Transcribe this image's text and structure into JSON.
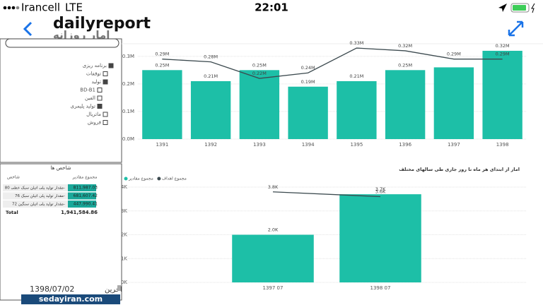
{
  "status_bar": {
    "carrier": "Irancell",
    "network": "LTE",
    "time": "22:01"
  },
  "header": {
    "title": "dailyreport",
    "subtitle": "امار روزانه"
  },
  "sidebar": {
    "tree": [
      "برنامه ریزی",
      "توقفات",
      "تولید",
      "BD-B1",
      "الفین",
      "تولید پلیمری",
      "ماتریال",
      "فروش"
    ]
  },
  "table": {
    "title": "شاخص ها",
    "columns": [
      "شاخص",
      "مجموع مقادیر"
    ],
    "rows": [
      [
        "مقدار تولید پلی اتیلن سبک خطی 80-",
        "811,987.03"
      ],
      [
        "مقدار تولید پلی اتیلن سبک 76-",
        "681,607.42"
      ],
      [
        "مقدار تولید پلی اتیلن سنگین 72-",
        "447,990.41"
      ]
    ],
    "total": [
      "Total",
      "1,941,584.86"
    ]
  },
  "footer": {
    "date": "1398/07/02",
    "label": "اخرین"
  },
  "watermark": "sedayiran.com",
  "chart_data": [
    {
      "type": "combo",
      "categories": [
        "1391",
        "1392",
        "1393",
        "1394",
        "1395",
        "1396",
        "1397",
        "1398"
      ],
      "series": [
        {
          "type": "bar",
          "color": "#1dbfa7",
          "values": [
            250000,
            210000,
            250000,
            190000,
            210000,
            250000,
            260000,
            320000
          ],
          "value_labels": [
            "0.25M",
            "0.21M",
            "0.25M",
            "0.19M",
            "0.21M",
            "0.25M",
            null,
            "0.32M"
          ]
        },
        {
          "type": "line",
          "color": "#3c4a4f",
          "values": [
            290000,
            280000,
            220000,
            240000,
            330000,
            320000,
            290000,
            290000
          ],
          "value_labels": [
            "0.29M",
            "0.28M",
            "0.22M",
            "0.24M",
            "0.33M",
            "0.32M",
            "0.29M",
            "0.29M"
          ]
        }
      ],
      "ylim": [
        0,
        325000
      ],
      "yticks": [
        {
          "value": 0,
          "label": "0.0M"
        },
        {
          "value": 100000,
          "label": "0.1M"
        },
        {
          "value": 200000,
          "label": "0.2M"
        },
        {
          "value": 300000,
          "label": "0.3M"
        }
      ],
      "grid": true
    },
    {
      "type": "combo",
      "title": "امار از ابتدای هر ماه تا روز جاری طی سالهای مختلف",
      "categories": [
        "1397 07",
        "1398 07"
      ],
      "series": [
        {
          "type": "bar",
          "name": "مجموع مقادیر",
          "color": "#1dbfa7",
          "values": [
            2000,
            3700
          ],
          "value_labels": [
            "2.0K",
            "3.7K"
          ]
        },
        {
          "type": "line",
          "name": "مجموع اهداف",
          "color": "#3c4a4f",
          "values": [
            3800,
            3600
          ],
          "value_labels": [
            "3.8K",
            "3.6K"
          ]
        }
      ],
      "ylim": [
        0,
        4000
      ],
      "yticks": [
        {
          "value": 0,
          "label": "0K"
        },
        {
          "value": 1000,
          "label": "1K"
        },
        {
          "value": 2000,
          "label": "2K"
        },
        {
          "value": 3000,
          "label": "3K"
        },
        {
          "value": 4000,
          "label": "4K"
        }
      ],
      "grid": true
    }
  ]
}
